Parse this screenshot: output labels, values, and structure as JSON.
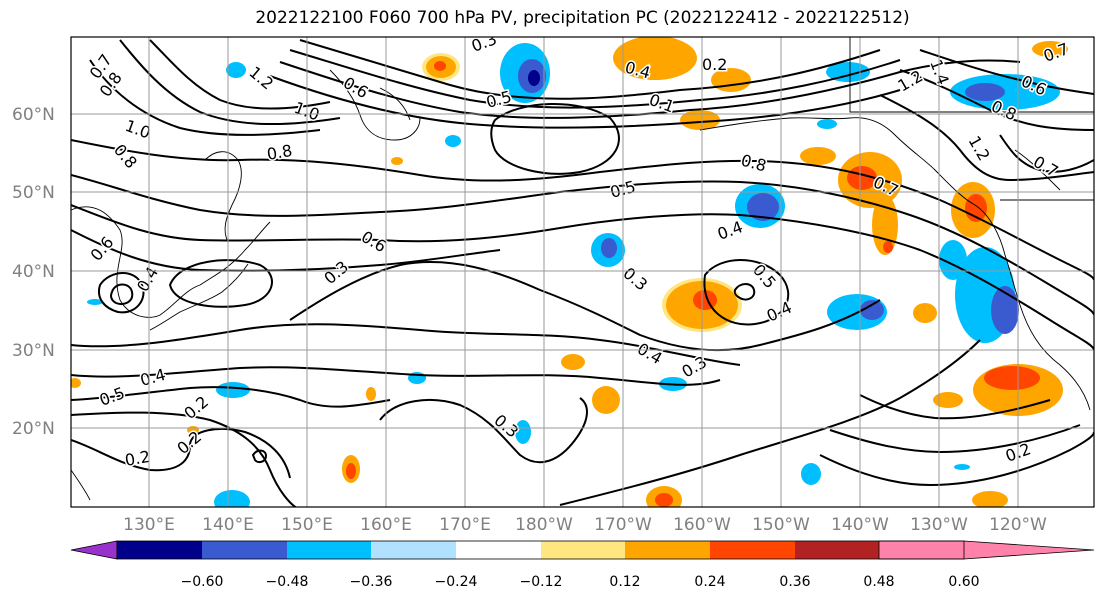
{
  "title": "2022122100 F060 700 hPa PV, precipitation PC (2022122412 - 2022122512)",
  "lat_labels": [
    "60°N",
    "50°N",
    "40°N",
    "30°N",
    "20°N"
  ],
  "lon_labels": [
    "130°E",
    "140°E",
    "150°E",
    "160°E",
    "170°E",
    "180°W",
    "170°W",
    "160°W",
    "150°W",
    "140°W",
    "130°W",
    "120°W"
  ],
  "colorbar": {
    "ticks": [
      "−0.60",
      "−0.48",
      "−0.36",
      "−0.24",
      "−0.12",
      "0.12",
      "0.24",
      "0.36",
      "0.48",
      "0.60"
    ],
    "colors": [
      "#9932cc",
      "#00008b",
      "#3a5bd0",
      "#00bfff",
      "#b0e2ff",
      "#ffffff",
      "#ffe680",
      "#ffa500",
      "#ff4500",
      "#b22222",
      "#ff82ab"
    ]
  },
  "contour_labels": [
    {
      "text": "0.3"
    },
    {
      "text": "0.4"
    },
    {
      "text": "0.2"
    },
    {
      "text": "0.7"
    },
    {
      "text": "0.8"
    },
    {
      "text": "1.2"
    },
    {
      "text": "1.0"
    },
    {
      "text": "0.5"
    },
    {
      "text": "0.1"
    },
    {
      "text": "0.6"
    },
    {
      "text": "0.8"
    },
    {
      "text": "1.0"
    },
    {
      "text": "0.8"
    },
    {
      "text": "0.5"
    },
    {
      "text": "0.7"
    },
    {
      "text": "0.6"
    },
    {
      "text": "0.3"
    },
    {
      "text": "0.4"
    },
    {
      "text": "0.3"
    },
    {
      "text": "0.5"
    },
    {
      "text": "0.4"
    },
    {
      "text": "0.4"
    },
    {
      "text": "0.3"
    },
    {
      "text": "0.3"
    },
    {
      "text": "0.2"
    },
    {
      "text": "0.2"
    },
    {
      "text": "0.2"
    },
    {
      "text": "0.5"
    },
    {
      "text": "0.4"
    },
    {
      "text": "0.2"
    },
    {
      "text": "1.4"
    },
    {
      "text": "1.2"
    },
    {
      "text": "0.8"
    },
    {
      "text": "0.6"
    },
    {
      "text": "1.2"
    },
    {
      "text": "0.7"
    },
    {
      "text": "0.7"
    },
    {
      "text": "0.8"
    },
    {
      "text": "0.4"
    },
    {
      "text": "0.6"
    }
  ]
}
